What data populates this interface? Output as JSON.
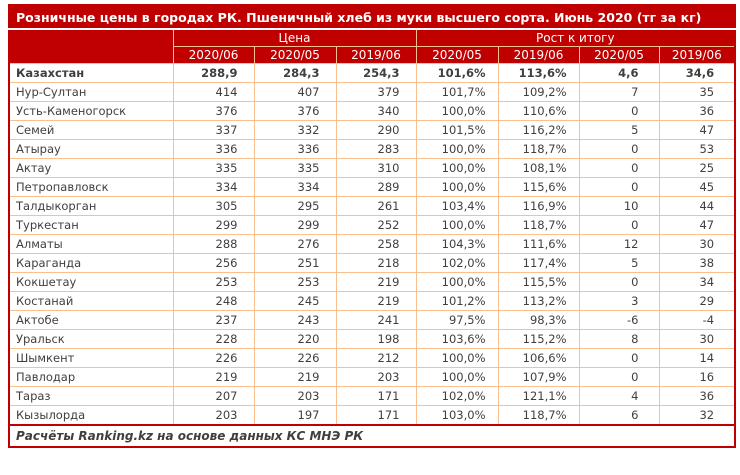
{
  "chart_data": {
    "type": "table",
    "title": "Розничные цены в городах РК. Пшеничный хлеб из муки высшего сорта. Июнь 2020 (тг за кг)",
    "group_headers": [
      {
        "label": "Цена",
        "colspan": 3
      },
      {
        "label": "Рост к итогу",
        "colspan": 4
      }
    ],
    "column_headers": [
      "2020/06",
      "2020/05",
      "2019/06",
      "2020/05",
      "2019/06",
      "2020/05",
      "2019/06"
    ],
    "rows": [
      {
        "name": "Казахстан",
        "values": [
          "288,9",
          "284,3",
          "254,3",
          "101,6%",
          "113,6%",
          "4,6",
          "34,6"
        ],
        "bold": true
      },
      {
        "name": "Нур-Султан",
        "values": [
          "414",
          "407",
          "379",
          "101,7%",
          "109,2%",
          "7",
          "35"
        ],
        "bold": false
      },
      {
        "name": "Усть-Каменогорск",
        "values": [
          "376",
          "376",
          "340",
          "100,0%",
          "110,6%",
          "0",
          "36"
        ],
        "bold": false
      },
      {
        "name": "Семей",
        "values": [
          "337",
          "332",
          "290",
          "101,5%",
          "116,2%",
          "5",
          "47"
        ],
        "bold": false
      },
      {
        "name": "Атырау",
        "values": [
          "336",
          "336",
          "283",
          "100,0%",
          "118,7%",
          "0",
          "53"
        ],
        "bold": false
      },
      {
        "name": "Актау",
        "values": [
          "335",
          "335",
          "310",
          "100,0%",
          "108,1%",
          "0",
          "25"
        ],
        "bold": false
      },
      {
        "name": "Петропавловск",
        "values": [
          "334",
          "334",
          "289",
          "100,0%",
          "115,6%",
          "0",
          "45"
        ],
        "bold": false
      },
      {
        "name": "Талдыкорган",
        "values": [
          "305",
          "295",
          "261",
          "103,4%",
          "116,9%",
          "10",
          "44"
        ],
        "bold": false
      },
      {
        "name": "Туркестан",
        "values": [
          "299",
          "299",
          "252",
          "100,0%",
          "118,7%",
          "0",
          "47"
        ],
        "bold": false
      },
      {
        "name": "Алматы",
        "values": [
          "288",
          "276",
          "258",
          "104,3%",
          "111,6%",
          "12",
          "30"
        ],
        "bold": false
      },
      {
        "name": "Караганда",
        "values": [
          "256",
          "251",
          "218",
          "102,0%",
          "117,4%",
          "5",
          "38"
        ],
        "bold": false
      },
      {
        "name": "Кокшетау",
        "values": [
          "253",
          "253",
          "219",
          "100,0%",
          "115,5%",
          "0",
          "34"
        ],
        "bold": false
      },
      {
        "name": "Костанай",
        "values": [
          "248",
          "245",
          "219",
          "101,2%",
          "113,2%",
          "3",
          "29"
        ],
        "bold": false
      },
      {
        "name": "Актобе",
        "values": [
          "237",
          "243",
          "241",
          "97,5%",
          "98,3%",
          "-6",
          "-4"
        ],
        "bold": false
      },
      {
        "name": "Уральск",
        "values": [
          "228",
          "220",
          "198",
          "103,6%",
          "115,2%",
          "8",
          "30"
        ],
        "bold": false
      },
      {
        "name": "Шымкент",
        "values": [
          "226",
          "226",
          "212",
          "100,0%",
          "106,6%",
          "0",
          "14"
        ],
        "bold": false
      },
      {
        "name": "Павлодар",
        "values": [
          "219",
          "219",
          "203",
          "100,0%",
          "107,9%",
          "0",
          "16"
        ],
        "bold": false
      },
      {
        "name": "Тараз",
        "values": [
          "207",
          "203",
          "171",
          "102,0%",
          "121,1%",
          "4",
          "36"
        ],
        "bold": false
      },
      {
        "name": "Кызылорда",
        "values": [
          "203",
          "197",
          "171",
          "103,0%",
          "118,7%",
          "6",
          "32"
        ],
        "bold": false
      }
    ],
    "source_note": "Расчёты Ranking.kz на основе данных КС МНЭ РК"
  },
  "colors": {
    "header_bg": "#c00000",
    "grid_line": "#fabf8f",
    "data_text": "#3f3f3f",
    "header_text": "#ffffff"
  }
}
